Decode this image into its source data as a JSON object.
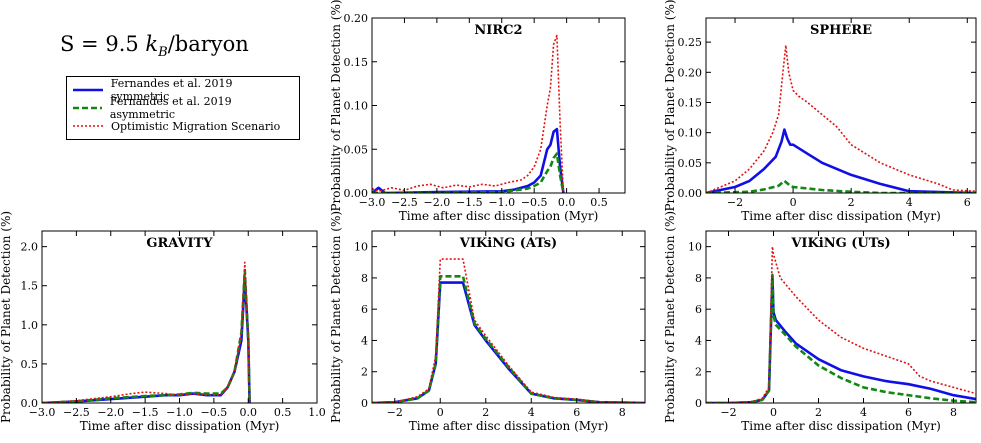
{
  "annotation": {
    "prefix": "S = 9.5 ",
    "kB": "k",
    "sub": "B",
    "suffix": "/baryon"
  },
  "legend": {
    "items": [
      {
        "label": "Fernandes et al. 2019 symmetric",
        "color": "#1010e6",
        "style": "solid"
      },
      {
        "label": "Fernandes et al. 2019 asymmetric",
        "color": "#118811",
        "style": "dashed"
      },
      {
        "label": "Optimistic Migration Scenario",
        "color": "#e01010",
        "style": "dotted"
      }
    ]
  },
  "chart_data": [
    {
      "type": "line",
      "title": "NIRC2",
      "xlabel": "Time after disc dissipation (Myr)",
      "ylabel": "Probability of Planet Detection (%)",
      "xlim": [
        -3.0,
        0.9
      ],
      "ylim": [
        0.0,
        0.2
      ],
      "xticks": [
        -3.0,
        -2.5,
        -2.0,
        -1.5,
        -1.0,
        -0.5,
        0.0,
        0.5
      ],
      "xtick_labels": [
        "−3.0",
        "−2.5",
        "−2.0",
        "−1.5",
        "−1.0",
        "−0.5",
        "0.0",
        "0.5"
      ],
      "yticks": [
        0.0,
        0.05,
        0.1,
        0.15,
        0.2
      ],
      "ytick_labels": [
        "0.00",
        "0.05",
        "0.10",
        "0.15",
        "0.20"
      ],
      "series": [
        {
          "name": "Fernandes et al. 2019 symmetric",
          "x": [
            -3.0,
            -2.9,
            -2.8,
            -2.0,
            -1.0,
            -0.8,
            -0.6,
            -0.5,
            -0.4,
            -0.3,
            -0.25,
            -0.2,
            -0.15,
            -0.1,
            -0.05
          ],
          "y": [
            0.0,
            0.006,
            0.0,
            0.001,
            0.002,
            0.004,
            0.008,
            0.012,
            0.02,
            0.05,
            0.055,
            0.07,
            0.073,
            0.03,
            0.0
          ]
        },
        {
          "name": "Fernandes et al. 2019 asymmetric",
          "x": [
            -3.0,
            -2.0,
            -1.0,
            -0.6,
            -0.5,
            -0.4,
            -0.3,
            -0.25,
            -0.2,
            -0.15,
            -0.1,
            -0.05
          ],
          "y": [
            0.0,
            0.0,
            0.001,
            0.005,
            0.008,
            0.012,
            0.025,
            0.03,
            0.04,
            0.045,
            0.02,
            0.0
          ]
        },
        {
          "name": "Optimistic Migration Scenario",
          "x": [
            -3.0,
            -2.9,
            -2.7,
            -2.5,
            -2.3,
            -2.1,
            -1.9,
            -1.7,
            -1.5,
            -1.3,
            -1.1,
            -0.9,
            -0.7,
            -0.6,
            -0.5,
            -0.4,
            -0.3,
            -0.25,
            -0.2,
            -0.15,
            -0.1,
            -0.05
          ],
          "y": [
            0.005,
            0.002,
            0.006,
            0.003,
            0.008,
            0.01,
            0.006,
            0.009,
            0.007,
            0.01,
            0.008,
            0.012,
            0.015,
            0.02,
            0.03,
            0.05,
            0.1,
            0.12,
            0.17,
            0.18,
            0.08,
            0.0
          ]
        }
      ]
    },
    {
      "type": "line",
      "title": "SPHERE",
      "xlabel": "Time after disc dissipation (Myr)",
      "ylabel": "Probability of Planet Detection (%)",
      "xlim": [
        -3.0,
        6.3
      ],
      "ylim": [
        0.0,
        0.29
      ],
      "xticks": [
        -2,
        0,
        2,
        4,
        6
      ],
      "xtick_labels": [
        "−2",
        "0",
        "2",
        "4",
        "6"
      ],
      "yticks": [
        0.0,
        0.05,
        0.1,
        0.15,
        0.2,
        0.25
      ],
      "ytick_labels": [
        "0.00",
        "0.05",
        "0.10",
        "0.15",
        "0.20",
        "0.25"
      ],
      "series": [
        {
          "name": "Fernandes et al. 2019 symmetric",
          "x": [
            -3.0,
            -2.0,
            -1.5,
            -1.0,
            -0.6,
            -0.4,
            -0.3,
            -0.2,
            -0.1,
            0.0,
            0.5,
            1.0,
            2.0,
            3.0,
            4.0,
            6.3
          ],
          "y": [
            0.0,
            0.01,
            0.02,
            0.04,
            0.06,
            0.085,
            0.105,
            0.09,
            0.08,
            0.08,
            0.065,
            0.05,
            0.03,
            0.015,
            0.003,
            0.0
          ]
        },
        {
          "name": "Fernandes et al. 2019 asymmetric",
          "x": [
            -3.0,
            -1.5,
            -1.0,
            -0.5,
            -0.3,
            -0.1,
            0.0,
            1.0,
            2.0,
            3.0,
            6.3
          ],
          "y": [
            0.0,
            0.002,
            0.006,
            0.012,
            0.02,
            0.012,
            0.01,
            0.005,
            0.002,
            0.0,
            0.0
          ]
        },
        {
          "name": "Optimistic Migration Scenario",
          "x": [
            -3.0,
            -2.0,
            -1.5,
            -1.0,
            -0.7,
            -0.5,
            -0.35,
            -0.25,
            -0.15,
            0.0,
            0.2,
            0.5,
            1.0,
            1.5,
            2.0,
            3.0,
            4.0,
            5.0,
            5.5,
            6.3
          ],
          "y": [
            0.0,
            0.02,
            0.04,
            0.07,
            0.1,
            0.13,
            0.2,
            0.245,
            0.2,
            0.17,
            0.16,
            0.15,
            0.13,
            0.11,
            0.08,
            0.05,
            0.03,
            0.015,
            0.005,
            0.003
          ]
        }
      ]
    },
    {
      "type": "line",
      "title": "GRAVITY",
      "xlabel": "Time after disc dissipation (Myr)",
      "ylabel": "Probability of Planet Detection (%)",
      "xlim": [
        -3.0,
        1.0
      ],
      "ylim": [
        0.0,
        2.2
      ],
      "xticks": [
        -3.0,
        -2.5,
        -2.0,
        -1.5,
        -1.0,
        -0.5,
        0.0,
        0.5,
        1.0
      ],
      "xtick_labels": [
        "−3.0",
        "−2.5",
        "−2.0",
        "−1.5",
        "−1.0",
        "−0.5",
        "0.0",
        "0.5",
        "1.0"
      ],
      "yticks": [
        0.0,
        0.5,
        1.0,
        1.5,
        2.0
      ],
      "ytick_labels": [
        "0.0",
        "0.5",
        "1.0",
        "1.5",
        "2.0"
      ],
      "series": [
        {
          "name": "Fernandes et al. 2019 symmetric",
          "x": [
            -3.0,
            -2.5,
            -2.0,
            -1.5,
            -1.2,
            -1.0,
            -0.8,
            -0.6,
            -0.4,
            -0.3,
            -0.2,
            -0.1,
            -0.05,
            0.0,
            0.02
          ],
          "y": [
            0.0,
            0.02,
            0.05,
            0.08,
            0.1,
            0.1,
            0.12,
            0.1,
            0.1,
            0.2,
            0.4,
            0.8,
            1.6,
            0.8,
            0.0
          ]
        },
        {
          "name": "Fernandes et al. 2019 asymmetric",
          "x": [
            -3.0,
            -2.5,
            -2.0,
            -1.5,
            -1.2,
            -1.0,
            -0.8,
            -0.6,
            -0.4,
            -0.3,
            -0.2,
            -0.1,
            -0.05,
            0.0,
            0.02
          ],
          "y": [
            0.0,
            0.02,
            0.06,
            0.09,
            0.1,
            0.11,
            0.13,
            0.12,
            0.12,
            0.2,
            0.4,
            0.9,
            1.7,
            0.8,
            0.0
          ]
        },
        {
          "name": "Optimistic Migration Scenario",
          "x": [
            -3.0,
            -2.5,
            -2.0,
            -1.7,
            -1.5,
            -1.2,
            -1.0,
            -0.8,
            -0.6,
            -0.4,
            -0.3,
            -0.2,
            -0.1,
            -0.05,
            0.0,
            0.02
          ],
          "y": [
            0.0,
            0.03,
            0.08,
            0.12,
            0.14,
            0.12,
            0.1,
            0.12,
            0.1,
            0.1,
            0.2,
            0.4,
            0.9,
            1.8,
            0.8,
            0.0
          ]
        }
      ]
    },
    {
      "type": "line",
      "title": "VIKiNG (ATs)",
      "xlabel": "Time after disc dissipation (Myr)",
      "ylabel": "Probability of Planet Detection (%)",
      "xlim": [
        -3.0,
        9.0
      ],
      "ylim": [
        0.0,
        11.0
      ],
      "xticks": [
        -2,
        0,
        2,
        4,
        6,
        8
      ],
      "xtick_labels": [
        "−2",
        "0",
        "2",
        "4",
        "6",
        "8"
      ],
      "yticks": [
        0,
        2,
        4,
        6,
        8,
        10
      ],
      "ytick_labels": [
        "0",
        "2",
        "4",
        "6",
        "8",
        "10"
      ],
      "series": [
        {
          "name": "Fernandes et al. 2019 symmetric",
          "x": [
            -3.0,
            -2.0,
            -1.0,
            -0.5,
            -0.2,
            0.0,
            1.0,
            1.5,
            2.0,
            3.0,
            4.0,
            5.0,
            6.0,
            7.0,
            9.0
          ],
          "y": [
            0.0,
            0.05,
            0.3,
            0.8,
            2.5,
            7.7,
            7.7,
            5.0,
            4.0,
            2.2,
            0.6,
            0.3,
            0.2,
            0.05,
            0.0
          ]
        },
        {
          "name": "Fernandes et al. 2019 asymmetric",
          "x": [
            -3.0,
            -2.0,
            -1.0,
            -0.5,
            -0.2,
            0.0,
            1.0,
            1.5,
            2.0,
            3.0,
            4.0,
            5.0,
            6.0,
            7.0,
            9.0
          ],
          "y": [
            0.0,
            0.05,
            0.3,
            0.8,
            2.5,
            8.1,
            8.1,
            5.1,
            4.1,
            2.3,
            0.6,
            0.3,
            0.2,
            0.05,
            0.0
          ]
        },
        {
          "name": "Optimistic Migration Scenario",
          "x": [
            -3.0,
            -2.0,
            -1.0,
            -0.5,
            -0.2,
            0.0,
            1.0,
            1.5,
            2.0,
            3.0,
            4.0,
            5.0,
            6.0,
            7.0,
            9.0
          ],
          "y": [
            0.0,
            0.05,
            0.4,
            0.9,
            3.0,
            9.2,
            9.2,
            5.3,
            4.3,
            2.4,
            0.7,
            0.35,
            0.25,
            0.05,
            0.0
          ]
        }
      ]
    },
    {
      "type": "line",
      "title": "VIKiNG (UTs)",
      "xlabel": "Time after disc dissipation (Myr)",
      "ylabel": "Probability of Planet Detection (%)",
      "xlim": [
        -3.0,
        9.0
      ],
      "ylim": [
        0.0,
        11.0
      ],
      "xticks": [
        -2,
        0,
        2,
        4,
        6,
        8
      ],
      "xtick_labels": [
        "−2",
        "0",
        "2",
        "4",
        "6",
        "8"
      ],
      "yticks": [
        0,
        2,
        4,
        6,
        8,
        10
      ],
      "ytick_labels": [
        "0",
        "2",
        "4",
        "6",
        "8",
        "10"
      ],
      "series": [
        {
          "name": "Fernandes et al. 2019 symmetric",
          "x": [
            -3.0,
            -2.0,
            -1.0,
            -0.5,
            -0.2,
            -0.05,
            0.0,
            0.1,
            0.5,
            1.0,
            2.0,
            3.0,
            4.0,
            5.0,
            6.0,
            7.0,
            8.0,
            9.0
          ],
          "y": [
            0.0,
            0.0,
            0.05,
            0.2,
            0.8,
            8.1,
            5.8,
            5.3,
            4.6,
            3.8,
            2.8,
            2.1,
            1.7,
            1.4,
            1.2,
            0.9,
            0.5,
            0.25
          ]
        },
        {
          "name": "Fernandes et al. 2019 asymmetric",
          "x": [
            -3.0,
            -2.0,
            -1.0,
            -0.5,
            -0.2,
            -0.05,
            0.0,
            0.1,
            0.5,
            1.0,
            2.0,
            3.0,
            4.0,
            5.0,
            6.0,
            7.0,
            8.0,
            9.0
          ],
          "y": [
            0.0,
            0.0,
            0.05,
            0.2,
            0.8,
            8.2,
            5.6,
            5.0,
            4.4,
            3.6,
            2.4,
            1.6,
            1.0,
            0.7,
            0.5,
            0.3,
            0.15,
            0.05
          ]
        },
        {
          "name": "Optimistic Migration Scenario",
          "x": [
            -3.0,
            -2.0,
            -1.0,
            -0.5,
            -0.2,
            -0.05,
            0.0,
            0.3,
            1.0,
            2.0,
            3.0,
            4.0,
            5.0,
            6.0,
            6.5,
            7.0,
            8.0,
            9.0
          ],
          "y": [
            0.0,
            0.0,
            0.05,
            0.3,
            1.0,
            10.0,
            9.5,
            8.0,
            6.8,
            5.3,
            4.2,
            3.5,
            3.0,
            2.5,
            1.7,
            1.4,
            1.0,
            0.6
          ]
        }
      ]
    }
  ]
}
